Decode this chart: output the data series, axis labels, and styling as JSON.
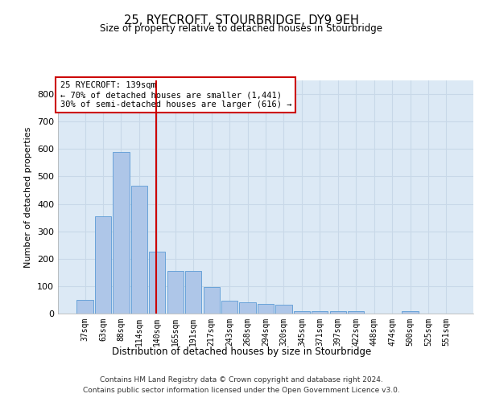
{
  "title": "25, RYECROFT, STOURBRIDGE, DY9 9EH",
  "subtitle": "Size of property relative to detached houses in Stourbridge",
  "xlabel": "Distribution of detached houses by size in Stourbridge",
  "ylabel": "Number of detached properties",
  "bar_labels": [
    "37sqm",
    "63sqm",
    "88sqm",
    "114sqm",
    "140sqm",
    "165sqm",
    "191sqm",
    "217sqm",
    "243sqm",
    "268sqm",
    "294sqm",
    "320sqm",
    "345sqm",
    "371sqm",
    "397sqm",
    "422sqm",
    "448sqm",
    "474sqm",
    "500sqm",
    "525sqm",
    "551sqm"
  ],
  "bar_values": [
    50,
    355,
    590,
    465,
    225,
    155,
    155,
    96,
    47,
    40,
    35,
    32,
    8,
    8,
    8,
    8,
    1,
    1,
    8,
    1,
    1
  ],
  "bar_color": "#aec6e8",
  "bar_edge_color": "#5b9bd5",
  "grid_color": "#c8d8e8",
  "background_color": "#dce9f5",
  "annotation_text_line1": "25 RYECROFT: 139sqm",
  "annotation_text_line2": "← 70% of detached houses are smaller (1,441)",
  "annotation_text_line3": "30% of semi-detached houses are larger (616) →",
  "annotation_box_color": "#ffffff",
  "annotation_line_color": "#cc0000",
  "ylim": [
    0,
    850
  ],
  "yticks": [
    0,
    100,
    200,
    300,
    400,
    500,
    600,
    700,
    800
  ],
  "footer_line1": "Contains HM Land Registry data © Crown copyright and database right 2024.",
  "footer_line2": "Contains public sector information licensed under the Open Government Licence v3.0."
}
